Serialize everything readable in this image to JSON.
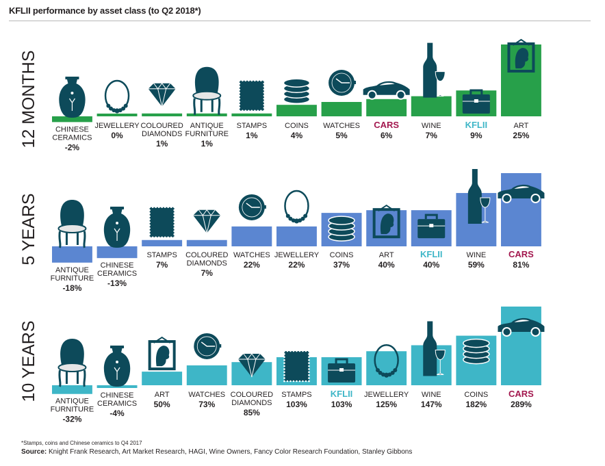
{
  "title": "KFLII performance by asset class (to Q2 2018*)",
  "footnote": "*Stamps, coins and Chinese ceramics to Q4 2017",
  "source_label": "Source:",
  "source_text": " Knight Frank Research, Art Market Research, HAGI, Wine Owners, Fancy Color Research Foundation, Stanley Gibbons",
  "colors": {
    "twelve_months": "#27a04a",
    "five_years": "#5b86d1",
    "ten_years": "#3eb6c7",
    "icon": "#0d4a5a",
    "cars_label": "#a3174e",
    "kflii_label": "#3eb6c7",
    "text": "#231f20"
  },
  "chart_data": [
    {
      "type": "bar",
      "title": "12 MONTHS",
      "categories": [
        {
          "lines": [
            "CHINESE",
            "CERAMICS"
          ],
          "value": -2,
          "label": "-2%",
          "icon": "vase-icon"
        },
        {
          "lines": [
            "JEWELLERY"
          ],
          "value": 0,
          "label": "0%",
          "icon": "necklace-icon"
        },
        {
          "lines": [
            "COLOURED",
            "DIAMONDS"
          ],
          "value": 1,
          "label": "1%",
          "icon": "diamond-icon"
        },
        {
          "lines": [
            "ANTIQUE",
            "FURNITURE"
          ],
          "value": 1,
          "label": "1%",
          "icon": "chair-icon"
        },
        {
          "lines": [
            "STAMPS"
          ],
          "value": 1,
          "label": "1%",
          "icon": "stamp-icon"
        },
        {
          "lines": [
            "COINS"
          ],
          "value": 4,
          "label": "4%",
          "icon": "coins-icon"
        },
        {
          "lines": [
            "WATCHES"
          ],
          "value": 5,
          "label": "5%",
          "icon": "watch-icon"
        },
        {
          "lines": [
            "CARS"
          ],
          "value": 6,
          "label": "6%",
          "icon": "car-icon",
          "highlight": "cars"
        },
        {
          "lines": [
            "WINE"
          ],
          "value": 7,
          "label": "7%",
          "icon": "wine-icon"
        },
        {
          "lines": [
            "KFLII"
          ],
          "value": 9,
          "label": "9%",
          "icon": "briefcase-icon",
          "highlight": "kflii"
        },
        {
          "lines": [
            "ART"
          ],
          "value": 25,
          "label": "25%",
          "icon": "portrait-icon"
        }
      ]
    },
    {
      "type": "bar",
      "title": "5 YEARS",
      "categories": [
        {
          "lines": [
            "ANTIQUE",
            "FURNITURE"
          ],
          "value": -18,
          "label": "-18%",
          "icon": "chair-icon"
        },
        {
          "lines": [
            "CHINESE",
            "CERAMICS"
          ],
          "value": -13,
          "label": "-13%",
          "icon": "vase-icon"
        },
        {
          "lines": [
            "STAMPS"
          ],
          "value": 7,
          "label": "7%",
          "icon": "stamp-icon"
        },
        {
          "lines": [
            "COLOURED",
            "DIAMONDS"
          ],
          "value": 7,
          "label": "7%",
          "icon": "diamond-icon"
        },
        {
          "lines": [
            "WATCHES"
          ],
          "value": 22,
          "label": "22%",
          "icon": "watch-icon"
        },
        {
          "lines": [
            "JEWELLERY"
          ],
          "value": 22,
          "label": "22%",
          "icon": "necklace-icon"
        },
        {
          "lines": [
            "COINS"
          ],
          "value": 37,
          "label": "37%",
          "icon": "coins-icon"
        },
        {
          "lines": [
            "ART"
          ],
          "value": 40,
          "label": "40%",
          "icon": "portrait-icon"
        },
        {
          "lines": [
            "KFLII"
          ],
          "value": 40,
          "label": "40%",
          "icon": "briefcase-icon",
          "highlight": "kflii"
        },
        {
          "lines": [
            "WINE"
          ],
          "value": 59,
          "label": "59%",
          "icon": "wine-icon"
        },
        {
          "lines": [
            "CARS"
          ],
          "value": 81,
          "label": "81%",
          "icon": "car-icon",
          "highlight": "cars"
        }
      ]
    },
    {
      "type": "bar",
      "title": "10 YEARS",
      "categories": [
        {
          "lines": [
            "ANTIQUE",
            "FURNITURE"
          ],
          "value": -32,
          "label": "-32%",
          "icon": "chair-icon"
        },
        {
          "lines": [
            "CHINESE",
            "CERAMICS"
          ],
          "value": -4,
          "label": "-4%",
          "icon": "vase-icon"
        },
        {
          "lines": [
            "ART"
          ],
          "value": 50,
          "label": "50%",
          "icon": "portrait-icon"
        },
        {
          "lines": [
            "WATCHES"
          ],
          "value": 73,
          "label": "73%",
          "icon": "watch-icon"
        },
        {
          "lines": [
            "COLOURED",
            "DIAMONDS"
          ],
          "value": 85,
          "label": "85%",
          "icon": "diamond-icon"
        },
        {
          "lines": [
            "STAMPS"
          ],
          "value": 103,
          "label": "103%",
          "icon": "stamp-icon"
        },
        {
          "lines": [
            "KFLII"
          ],
          "value": 103,
          "label": "103%",
          "icon": "briefcase-icon",
          "highlight": "kflii"
        },
        {
          "lines": [
            "JEWELLERY"
          ],
          "value": 125,
          "label": "125%",
          "icon": "necklace-icon"
        },
        {
          "lines": [
            "WINE"
          ],
          "value": 147,
          "label": "147%",
          "icon": "wine-icon"
        },
        {
          "lines": [
            "COINS"
          ],
          "value": 182,
          "label": "182%",
          "icon": "coins-icon"
        },
        {
          "lines": [
            "CARS"
          ],
          "value": 289,
          "label": "289%",
          "icon": "car-icon",
          "highlight": "cars"
        }
      ]
    }
  ]
}
